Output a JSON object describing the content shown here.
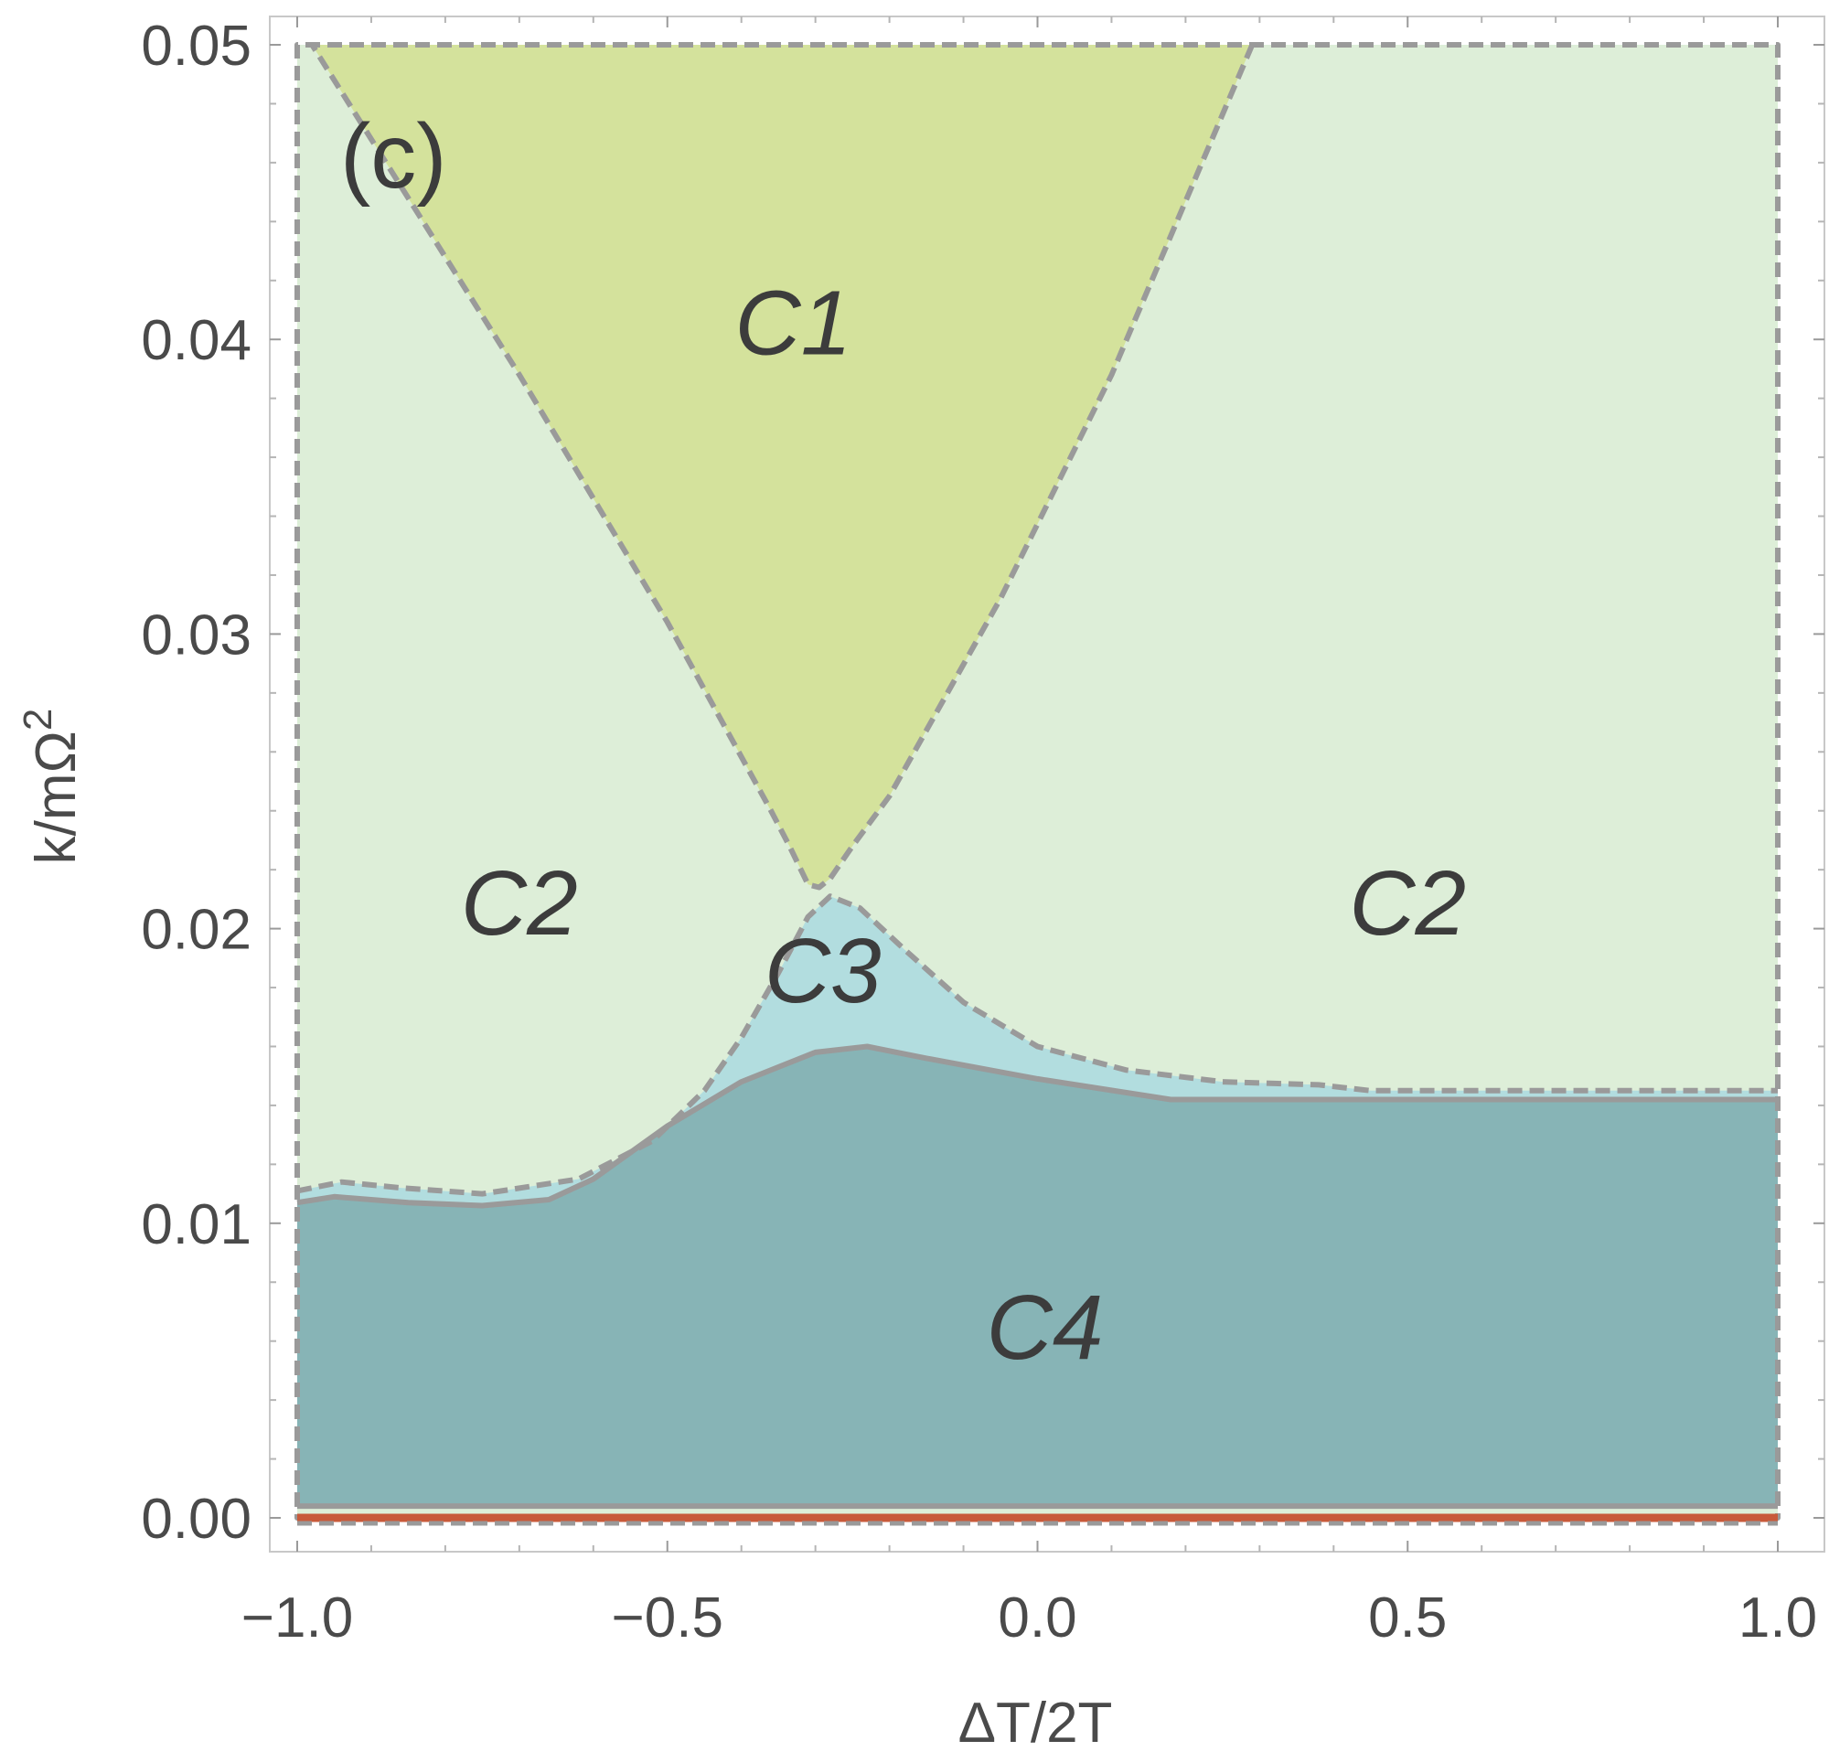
{
  "chart_data": {
    "type": "area",
    "panel_label": "(c)",
    "xlabel": "ΔT/2T",
    "ylabel": "k/mΩ",
    "ylabel_sup": "2",
    "xlim": [
      -1.0,
      1.0
    ],
    "ylim": [
      0.0,
      0.05
    ],
    "x_ticks": [
      {
        "v": -1.0,
        "label": "−1.0"
      },
      {
        "v": -0.5,
        "label": "−0.5"
      },
      {
        "v": 0.0,
        "label": "0.0"
      },
      {
        "v": 0.5,
        "label": "0.5"
      },
      {
        "v": 1.0,
        "label": "1.0"
      }
    ],
    "y_ticks": [
      {
        "v": 0.0,
        "label": "0.00"
      },
      {
        "v": 0.01,
        "label": "0.01"
      },
      {
        "v": 0.02,
        "label": "0.02"
      },
      {
        "v": 0.03,
        "label": "0.03"
      },
      {
        "v": 0.04,
        "label": "0.04"
      },
      {
        "v": 0.05,
        "label": "0.05"
      }
    ],
    "grid": false,
    "colors": {
      "C1": "#d4e29c",
      "C2": "#ddeed8",
      "C3": "#b2dddf",
      "C4": "#87b4b6",
      "boundary": "#9a9a9a",
      "baseline": "#c85a3a"
    },
    "regions": [
      {
        "name": "C2",
        "label": "C2",
        "label_at": [
          -0.7,
          0.0198
        ],
        "boundary": [
          [
            -1.0,
            0.0
          ],
          [
            1.0,
            0.0
          ],
          [
            1.0,
            0.05
          ],
          [
            -1.0,
            0.05
          ]
        ]
      },
      {
        "name": "C1",
        "label": "C1",
        "label_at": [
          -0.33,
          0.0395
        ],
        "boundary": [
          [
            -0.98,
            0.05
          ],
          [
            0.29,
            0.05
          ],
          [
            0.1,
            0.0388
          ],
          [
            -0.05,
            0.0312
          ],
          [
            -0.2,
            0.0245
          ],
          [
            -0.25,
            0.0228
          ],
          [
            -0.28,
            0.0217
          ],
          [
            -0.295,
            0.0214
          ],
          [
            -0.31,
            0.0215
          ],
          [
            -0.335,
            0.0228
          ],
          [
            -0.36,
            0.024
          ],
          [
            -0.5,
            0.0304
          ],
          [
            -0.7,
            0.0388
          ],
          [
            -0.9,
            0.0468
          ]
        ]
      },
      {
        "name": "C3",
        "label": "C3",
        "label_at": [
          -0.29,
          0.0175
        ],
        "boundary": [
          [
            -1.0,
            0.0111
          ],
          [
            -0.94,
            0.0114
          ],
          [
            -0.86,
            0.0112
          ],
          [
            -0.75,
            0.011
          ],
          [
            -0.62,
            0.0115
          ],
          [
            -0.52,
            0.0128
          ],
          [
            -0.45,
            0.0145
          ],
          [
            -0.4,
            0.0163
          ],
          [
            -0.35,
            0.0185
          ],
          [
            -0.31,
            0.0204
          ],
          [
            -0.28,
            0.0211
          ],
          [
            -0.24,
            0.0207
          ],
          [
            -0.18,
            0.0193
          ],
          [
            -0.1,
            0.0175
          ],
          [
            0.0,
            0.016
          ],
          [
            0.12,
            0.0152
          ],
          [
            0.25,
            0.0148
          ],
          [
            0.38,
            0.0147
          ],
          [
            0.45,
            0.0145
          ],
          [
            1.0,
            0.0145
          ],
          [
            1.0,
            0.0142
          ],
          [
            0.45,
            0.0142
          ],
          [
            0.18,
            0.0142
          ],
          [
            0.0,
            0.0149
          ],
          [
            -0.15,
            0.0156
          ],
          [
            -0.23,
            0.016
          ],
          [
            -0.3,
            0.0158
          ],
          [
            -0.4,
            0.0148
          ],
          [
            -0.5,
            0.0133
          ],
          [
            -0.6,
            0.0115
          ],
          [
            -0.66,
            0.0108
          ],
          [
            -0.75,
            0.0106
          ],
          [
            -0.85,
            0.0107
          ],
          [
            -0.95,
            0.0109
          ],
          [
            -1.0,
            0.0107
          ]
        ]
      },
      {
        "name": "C4",
        "label": "C4",
        "label_at": [
          0.01,
          0.0054
        ],
        "boundary": [
          [
            -1.0,
            0.0004
          ],
          [
            1.0,
            0.0004
          ],
          [
            1.0,
            0.0142
          ],
          [
            0.45,
            0.0142
          ],
          [
            0.18,
            0.0142
          ],
          [
            0.0,
            0.0149
          ],
          [
            -0.15,
            0.0156
          ],
          [
            -0.23,
            0.016
          ],
          [
            -0.3,
            0.0158
          ],
          [
            -0.4,
            0.0148
          ],
          [
            -0.5,
            0.0133
          ],
          [
            -0.6,
            0.0115
          ],
          [
            -0.66,
            0.0108
          ],
          [
            -0.75,
            0.0106
          ],
          [
            -0.85,
            0.0107
          ],
          [
            -0.95,
            0.0109
          ],
          [
            -1.0,
            0.0107
          ]
        ]
      }
    ],
    "region_labels": [
      {
        "text": "C1",
        "x": -0.33,
        "y": 0.0395
      },
      {
        "text": "C2",
        "x": -0.7,
        "y": 0.0198
      },
      {
        "text": "C2",
        "x": 0.5,
        "y": 0.0198
      },
      {
        "text": "C3",
        "x": -0.29,
        "y": 0.0175
      },
      {
        "text": "C4",
        "x": 0.01,
        "y": 0.0054
      }
    ]
  }
}
